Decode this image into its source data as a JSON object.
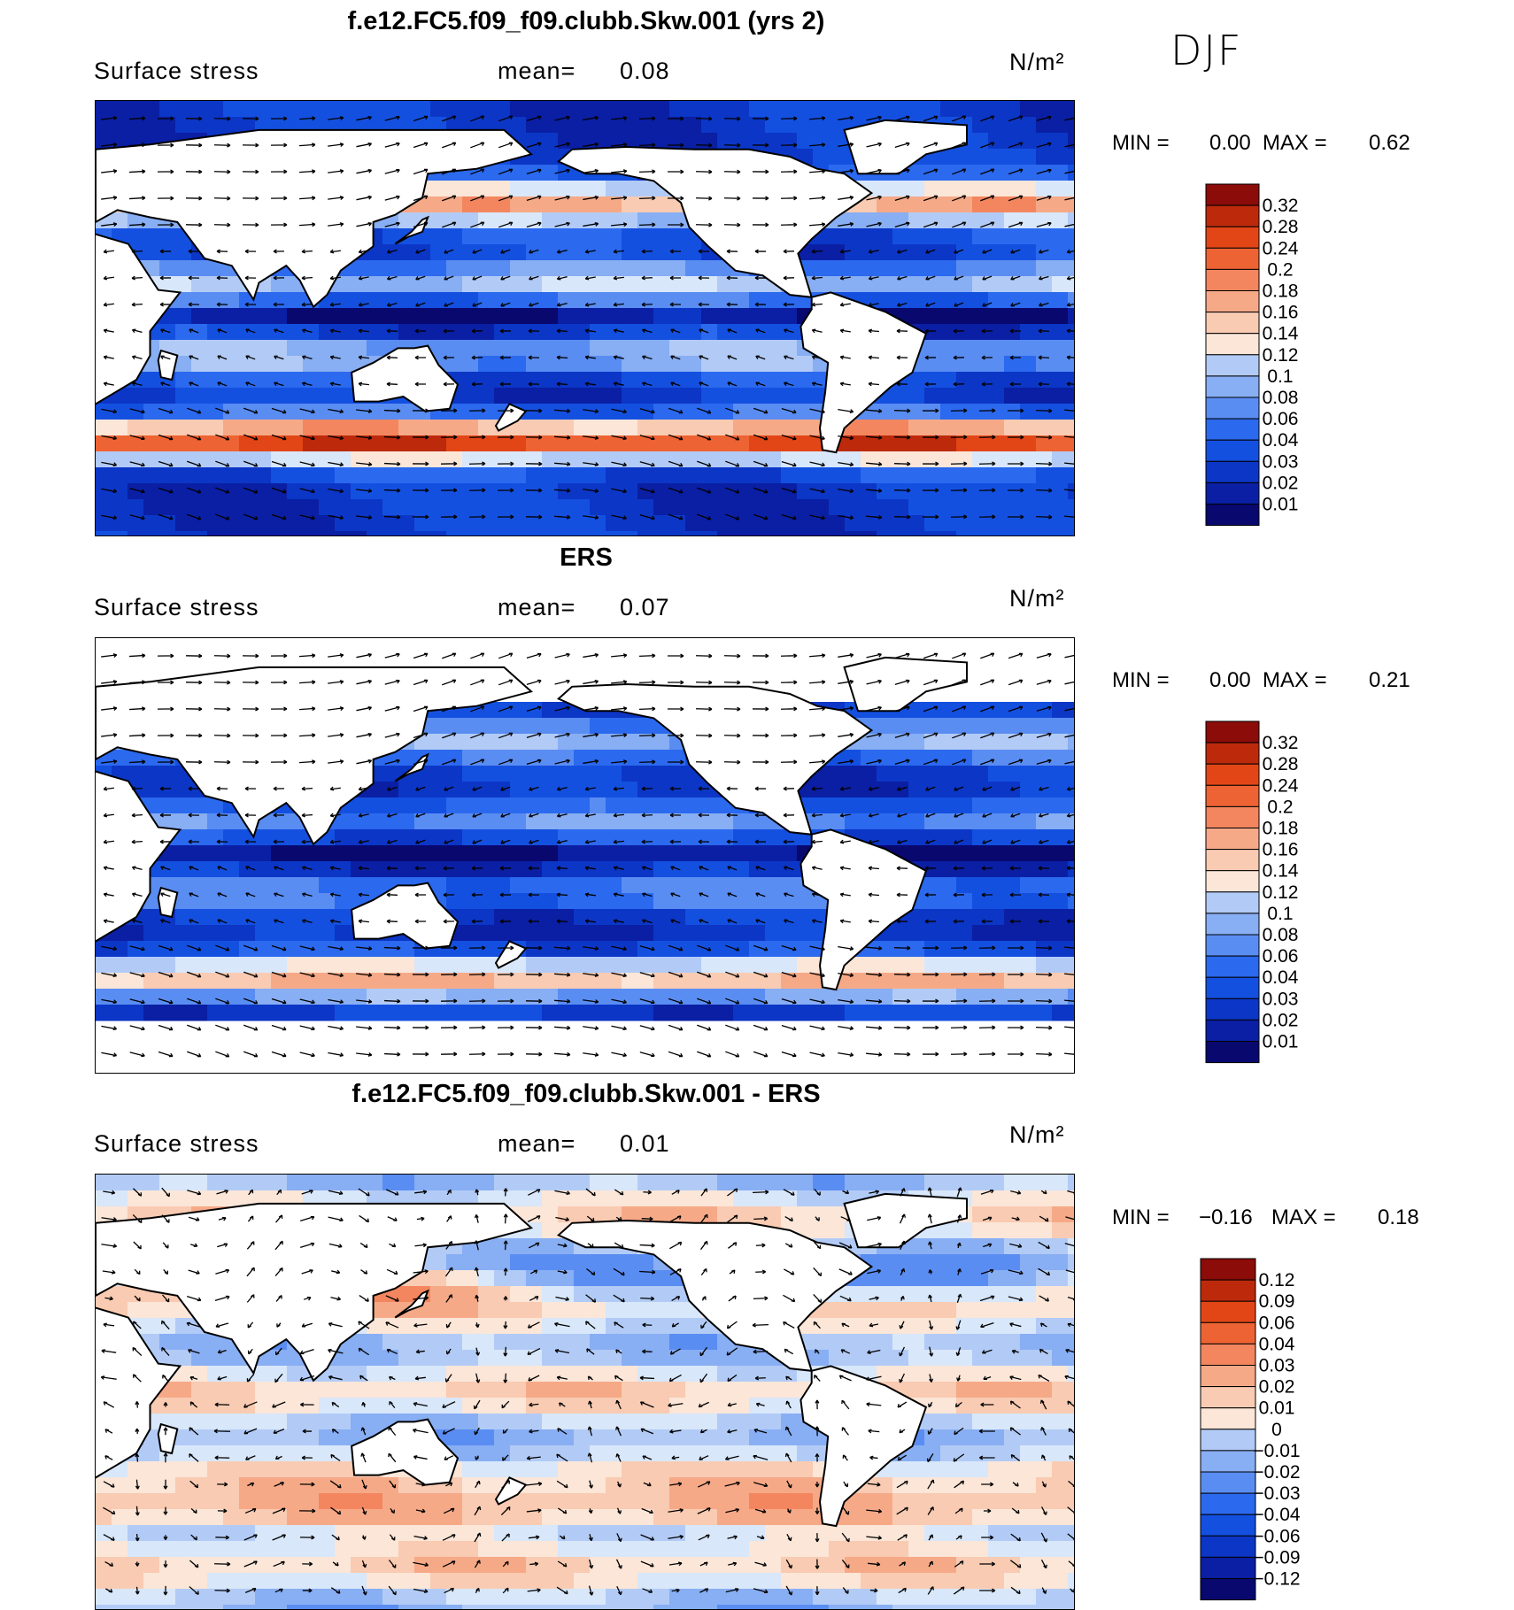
{
  "header": {
    "season": "DJF"
  },
  "colors": {
    "seq": [
      "#08086f",
      "#0a1fa3",
      "#0c36c6",
      "#1450e0",
      "#2b69ee",
      "#5a8df2",
      "#88aef3",
      "#b2cbf6",
      "#d8e7fa",
      "#fbe6d8",
      "#f9cbb2",
      "#f6a987",
      "#f3865f",
      "#ee6333",
      "#e24617",
      "#bc2a0b",
      "#8b0c08"
    ],
    "diff": [
      "#08086f",
      "#0a1fa3",
      "#0c36c6",
      "#1450e0",
      "#2b69ee",
      "#5a8df2",
      "#88aef3",
      "#b2cbf6",
      "#d8e7fa",
      "#fbe6d8",
      "#f9cbb2",
      "#f6a987",
      "#f3865f",
      "#ee6333",
      "#e24617",
      "#bc2a0b",
      "#8b0c08"
    ]
  },
  "panels": [
    {
      "id": "model",
      "title": "f.e12.FC5.f09_f09.clubb.Skw.001 (yrs 2)",
      "variable": "Surface stress",
      "mean_label": "mean=",
      "mean_value": "0.08",
      "units": "N/m²",
      "min_label": "MIN =",
      "min_value": "0.00",
      "max_label": "MAX =",
      "max_value": "0.62",
      "colorbar_levels": [
        "0.32",
        "0.28",
        "0.24",
        "0.2",
        "0.18",
        "0.16",
        "0.14",
        "0.12",
        "0.1",
        "0.08",
        "0.06",
        "0.04",
        "0.03",
        "0.02",
        "0.01"
      ]
    },
    {
      "id": "obs",
      "title": "ERS",
      "variable": "Surface stress",
      "mean_label": "mean=",
      "mean_value": "0.07",
      "units": "N/m²",
      "min_label": "MIN =",
      "min_value": "0.00",
      "max_label": "MAX =",
      "max_value": "0.21",
      "colorbar_levels": [
        "0.32",
        "0.28",
        "0.24",
        "0.2",
        "0.18",
        "0.16",
        "0.14",
        "0.12",
        "0.1",
        "0.08",
        "0.06",
        "0.04",
        "0.03",
        "0.02",
        "0.01"
      ]
    },
    {
      "id": "diff",
      "title": "f.e12.FC5.f09_f09.clubb.Skw.001 - ERS",
      "variable": "Surface stress",
      "mean_label": "mean=",
      "mean_value": "0.01",
      "units": "N/m²",
      "min_label": "MIN =",
      "min_value": "−0.16",
      "max_label": "MAX =",
      "max_value": "0.18",
      "colorbar_levels": [
        "0.12",
        "0.09",
        "0.06",
        "0.04",
        "0.03",
        "0.02",
        "0.01",
        "0",
        "−0.01",
        "−0.02",
        "−0.03",
        "−0.04",
        "−0.06",
        "−0.09",
        "−0.12"
      ]
    }
  ],
  "chart_data": [
    {
      "type": "heatmap",
      "title": "f.e12.FC5.f09_f09.clubb.Skw.001 (yrs 2)",
      "subtitle": "Surface stress",
      "units": "N/m²",
      "mean": 0.08,
      "min": 0.0,
      "max": 0.62,
      "season": "DJF",
      "contour_levels": [
        0.01,
        0.02,
        0.03,
        0.04,
        0.06,
        0.08,
        0.1,
        0.12,
        0.14,
        0.16,
        0.18,
        0.2,
        0.24,
        0.28,
        0.32
      ],
      "overlay": "wind stress vectors",
      "xlim": [
        0,
        360
      ],
      "ylim": [
        -90,
        90
      ]
    },
    {
      "type": "heatmap",
      "title": "ERS",
      "subtitle": "Surface stress",
      "units": "N/m²",
      "mean": 0.07,
      "min": 0.0,
      "max": 0.21,
      "season": "DJF",
      "contour_levels": [
        0.01,
        0.02,
        0.03,
        0.04,
        0.06,
        0.08,
        0.1,
        0.12,
        0.14,
        0.16,
        0.18,
        0.2,
        0.24,
        0.28,
        0.32
      ],
      "overlay": "wind stress vectors",
      "xlim": [
        0,
        360
      ],
      "ylim": [
        -90,
        90
      ]
    },
    {
      "type": "heatmap",
      "title": "f.e12.FC5.f09_f09.clubb.Skw.001 - ERS",
      "subtitle": "Surface stress",
      "units": "N/m²",
      "mean": 0.01,
      "min": -0.16,
      "max": 0.18,
      "season": "DJF",
      "contour_levels": [
        -0.12,
        -0.09,
        -0.06,
        -0.04,
        -0.03,
        -0.02,
        -0.01,
        0,
        0.01,
        0.02,
        0.03,
        0.04,
        0.06,
        0.09,
        0.12
      ],
      "overlay": "wind stress difference vectors",
      "xlim": [
        0,
        360
      ],
      "ylim": [
        -90,
        90
      ]
    }
  ]
}
